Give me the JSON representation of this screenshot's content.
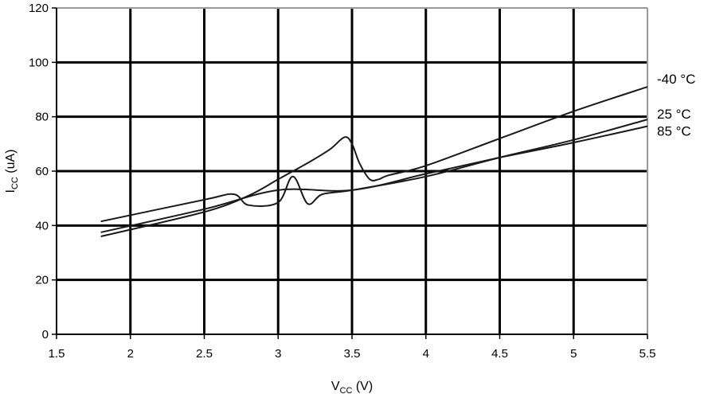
{
  "chart_data": {
    "type": "line",
    "xlabel": {
      "main": "V",
      "sub": "CC",
      "unit": " (V)"
    },
    "ylabel": {
      "main": "I",
      "sub": "CC",
      "unit": " (uA)"
    },
    "xlim": [
      1.5,
      5.5
    ],
    "ylim": [
      0,
      120
    ],
    "xticks": [
      1.5,
      2,
      2.5,
      3,
      3.5,
      4,
      4.5,
      5,
      5.5
    ],
    "xtick_labels": [
      "1.5",
      "2",
      "2.5",
      "3",
      "3.5",
      "4",
      "4.5",
      "5",
      "5.5"
    ],
    "yticks": [
      0,
      20,
      40,
      60,
      80,
      100,
      120
    ],
    "ytick_labels": [
      "0",
      "20",
      "40",
      "60",
      "80",
      "100",
      "120"
    ],
    "grid": true,
    "series": [
      {
        "name": "-40 °C",
        "x": [
          1.8,
          2.5,
          2.8,
          3.0,
          3.2,
          3.35,
          3.45,
          3.5,
          3.55,
          3.62,
          3.68,
          3.75,
          4.0,
          4.5,
          5.0,
          5.5
        ],
        "y": [
          36,
          45,
          51,
          57,
          63,
          68,
          72.5,
          70,
          63,
          57,
          57,
          58.5,
          62,
          72,
          82,
          91
        ]
      },
      {
        "name": "25 °C",
        "x": [
          1.8,
          2.5,
          2.7,
          2.8,
          3.0,
          3.1,
          3.2,
          3.3,
          3.5,
          4.0,
          4.5,
          5.0,
          5.5
        ],
        "y": [
          41.5,
          49.5,
          51.5,
          47.5,
          48.5,
          58,
          48,
          51.5,
          53,
          58,
          65,
          71.5,
          79
        ]
      },
      {
        "name": "85 °C",
        "x": [
          1.8,
          2.5,
          3.0,
          3.5,
          4.0,
          4.5,
          5.0,
          5.5
        ],
        "y": [
          37.5,
          46,
          53,
          53,
          59,
          65,
          70.5,
          76.5
        ]
      }
    ]
  }
}
